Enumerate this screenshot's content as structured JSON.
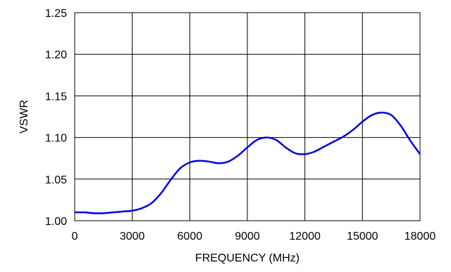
{
  "chart_data": {
    "type": "line",
    "title": "",
    "xlabel": "FREQUENCY (MHz)",
    "ylabel": "VSWR",
    "xlim": [
      0,
      18000
    ],
    "ylim": [
      1.0,
      1.25
    ],
    "x_ticks": [
      0,
      3000,
      6000,
      9000,
      12000,
      15000,
      18000
    ],
    "x_tick_labels": [
      "0",
      "3000",
      "6000",
      "9000",
      "12000",
      "15000",
      "18000"
    ],
    "y_ticks": [
      1.0,
      1.05,
      1.1,
      1.15,
      1.2,
      1.25
    ],
    "y_tick_labels": [
      "1.00",
      "1.05",
      "1.10",
      "1.15",
      "1.20",
      "1.25"
    ],
    "grid": true,
    "legend": "none",
    "colors": {
      "line": "#0000e6",
      "grid": "#000000",
      "frame": "#000000"
    },
    "series": [
      {
        "x": [
          0,
          500,
          1000,
          1500,
          2000,
          2500,
          3000,
          3500,
          4000,
          4500,
          5000,
          5500,
          6000,
          6500,
          7000,
          7500,
          8000,
          8500,
          9000,
          9500,
          10000,
          10500,
          11000,
          11500,
          12000,
          12500,
          13000,
          13500,
          14000,
          14500,
          15000,
          15500,
          16000,
          16500,
          17000,
          17500,
          18000
        ],
        "y": [
          1.01,
          1.01,
          1.009,
          1.009,
          1.01,
          1.011,
          1.012,
          1.015,
          1.021,
          1.033,
          1.049,
          1.063,
          1.07,
          1.072,
          1.071,
          1.069,
          1.071,
          1.078,
          1.088,
          1.097,
          1.1,
          1.097,
          1.088,
          1.081,
          1.08,
          1.083,
          1.089,
          1.095,
          1.101,
          1.109,
          1.119,
          1.127,
          1.13,
          1.127,
          1.114,
          1.096,
          1.08
        ]
      }
    ]
  }
}
